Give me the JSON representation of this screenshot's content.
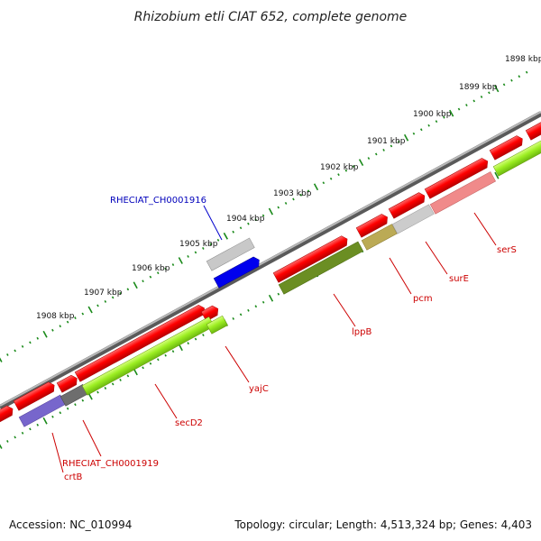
{
  "title": "Rhizobium etli CIAT 652, complete genome",
  "footer": {
    "accession": "Accession: NC_010994",
    "summary": "Topology: circular; Length: 4,513,324 bp; Genes: 4,403"
  },
  "scale_labels": [
    "1898 kbp",
    "1899 kbp",
    "1900 kbp",
    "1901 kbp",
    "1902 kbp",
    "1903 kbp",
    "1904 kbp",
    "1905 kbp",
    "1906 kbp",
    "1907 kbp",
    "1908 kbp"
  ],
  "gene_labels": {
    "rheciat_1916": "RHECIAT_CH0001916",
    "yajc": "yajC",
    "secd2": "secD2",
    "rheciat_1919": "RHECIAT_CH0001919",
    "crtb": "crtB",
    "lppb": "lppB",
    "pcm": "pcm",
    "sure": "surE",
    "sers": "serS"
  },
  "colors": {
    "forward_cds": "#ff0000",
    "reverse_cds": "#99ee22",
    "backbone": "#7a7a7a",
    "scale_ticks": "#1a8a1a",
    "highlight_label": "#0000bb",
    "gene_label": "#cc0000"
  }
}
